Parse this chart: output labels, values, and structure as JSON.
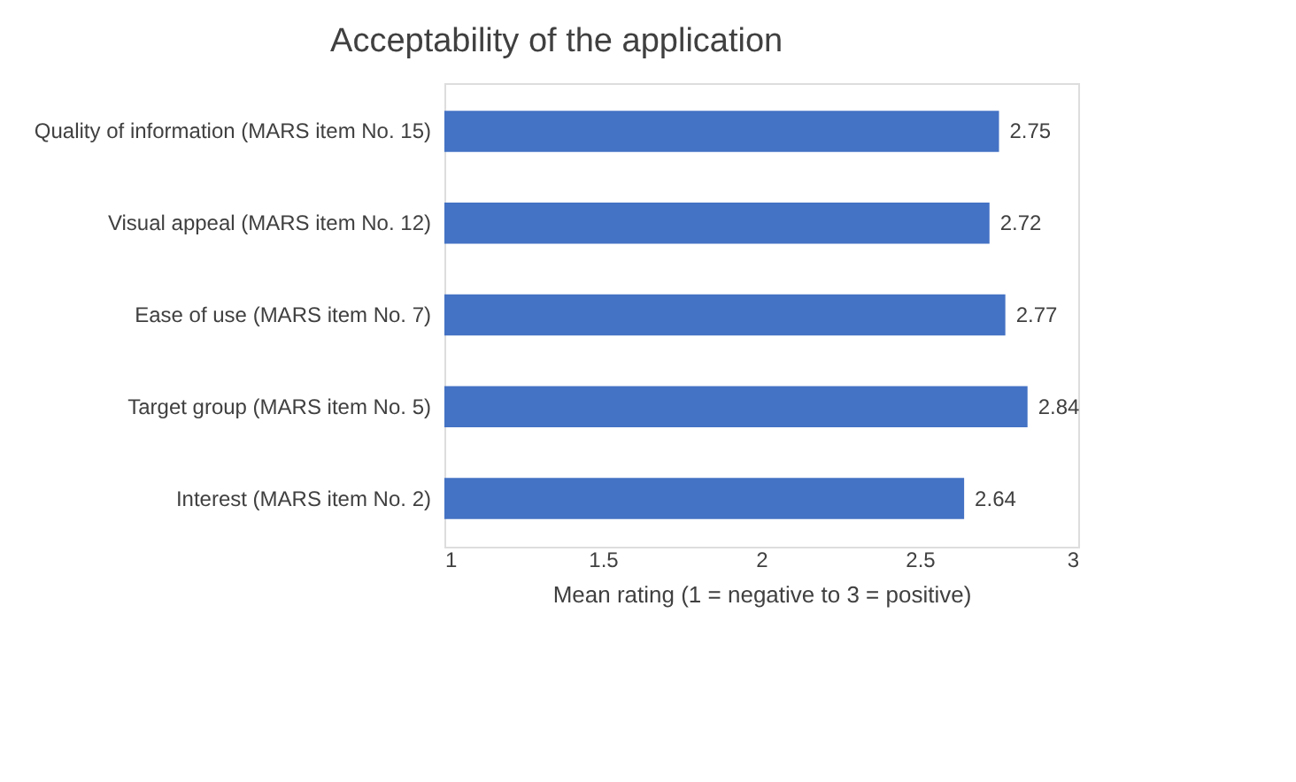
{
  "chart_data": {
    "type": "bar",
    "orientation": "horizontal",
    "title": "Acceptability of the application",
    "xlabel": "Mean rating  (1 = negative to 3 = positive)",
    "categories": [
      "Quality of information (MARS item No. 15)",
      "Visual appeal (MARS item No. 12)",
      "Ease of use (MARS item No. 7)",
      "Target group (MARS item No. 5)",
      "Interest (MARS item No. 2)"
    ],
    "values": [
      2.75,
      2.72,
      2.77,
      2.84,
      2.64
    ],
    "color": "#4472c4",
    "data_labels": true,
    "xlim": [
      1,
      3
    ],
    "xticks": [
      1,
      1.5,
      2,
      2.5,
      3
    ],
    "grid": false
  }
}
